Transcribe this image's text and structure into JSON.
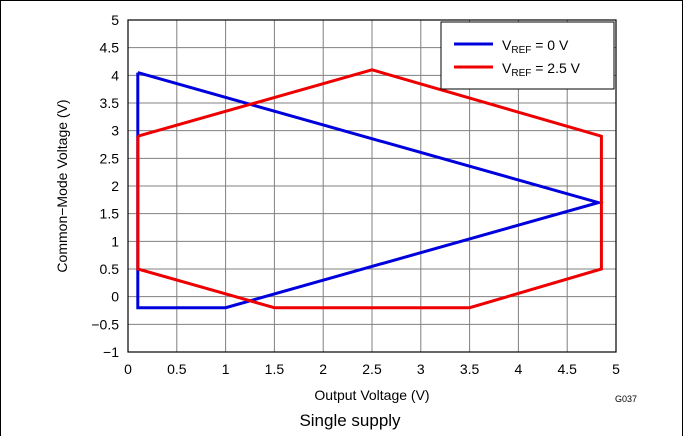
{
  "chart_data": {
    "type": "line",
    "xlabel": "Output Voltage (V)",
    "ylabel": "Common−Mode Voltage (V)",
    "caption": "Single supply",
    "figure_id": "G037",
    "xlim": [
      0,
      5
    ],
    "ylim": [
      -1,
      5
    ],
    "x_ticks": [
      0,
      0.5,
      1,
      1.5,
      2,
      2.5,
      3,
      3.5,
      4,
      4.5,
      5
    ],
    "x_tick_labels": [
      "0",
      "0.5",
      "1",
      "1.5",
      "2",
      "2.5",
      "3",
      "3.5",
      "4",
      "4.5",
      "5"
    ],
    "y_ticks": [
      -1,
      -0.5,
      0,
      0.5,
      1,
      1.5,
      2,
      2.5,
      3,
      3.5,
      4,
      4.5,
      5
    ],
    "y_tick_labels": [
      "−1",
      "−0.5",
      "0",
      "0.5",
      "1",
      "1.5",
      "2",
      "2.5",
      "3",
      "3.5",
      "4",
      "4.5",
      "5"
    ],
    "grid": true,
    "legend_position": "top-right",
    "series": [
      {
        "name_main": "V",
        "name_sub": "REF",
        "name_rest": " = 0 V",
        "color": "#0000dd",
        "x": [
          0.1,
          4.82,
          1.0,
          0.1,
          0.1
        ],
        "y": [
          4.05,
          1.7,
          -0.2,
          -0.2,
          4.05
        ]
      },
      {
        "name_main": "V",
        "name_sub": "REF",
        "name_rest": " = 2.5 V",
        "color": "#ee0000",
        "x": [
          0.1,
          2.5,
          4.85,
          4.85,
          3.5,
          1.5,
          0.1,
          0.1
        ],
        "y": [
          2.9,
          4.1,
          2.9,
          0.5,
          -0.2,
          -0.2,
          0.5,
          2.9
        ]
      }
    ]
  }
}
